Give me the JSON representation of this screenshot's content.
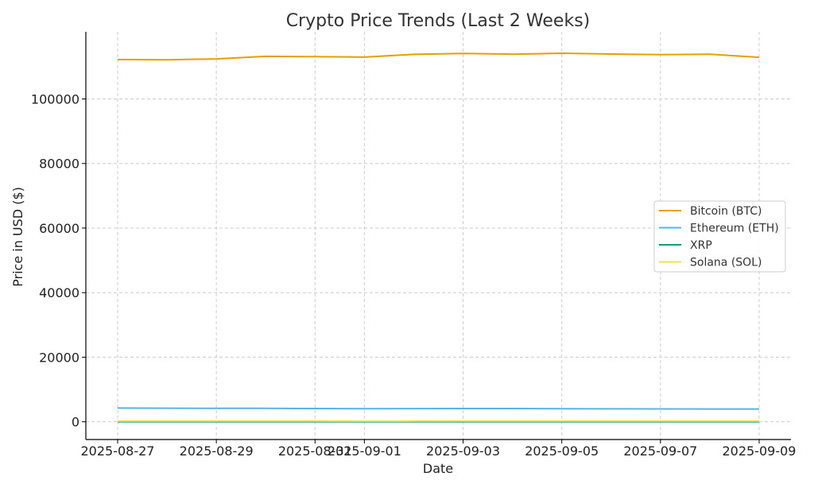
{
  "chart_data": {
    "type": "line",
    "title": "Crypto Price Trends (Last 2 Weeks)",
    "xlabel": "Date",
    "ylabel": "Price in USD ($)",
    "x": [
      "2025-08-27",
      "2025-08-28",
      "2025-08-29",
      "2025-08-30",
      "2025-08-31",
      "2025-09-01",
      "2025-09-02",
      "2025-09-03",
      "2025-09-04",
      "2025-09-05",
      "2025-09-06",
      "2025-09-07",
      "2025-09-08",
      "2025-09-09"
    ],
    "x_ticks": [
      "2025-08-27",
      "2025-08-29",
      "2025-08-31",
      "2025-09-01",
      "2025-09-03",
      "2025-09-05",
      "2025-09-07",
      "2025-09-09"
    ],
    "x_tick_labels": [
      "2025-08-27",
      "2025-08-29",
      "2025-08-31",
      "2025-09-01",
      "2025-09-03",
      "2025-09-05",
      "2025-09-07",
      "2025-09-09"
    ],
    "y_ticks": [
      0,
      20000,
      40000,
      60000,
      80000,
      100000
    ],
    "y_tick_labels": [
      "0",
      "20000",
      "40000",
      "60000",
      "80000",
      "100000"
    ],
    "ylim": [
      -5500,
      120800
    ],
    "grid": true,
    "legend_position": "center-right",
    "series": [
      {
        "name": "Bitcoin (BTC)",
        "color": "#E69F00",
        "values": [
          112200,
          112100,
          112400,
          113200,
          113100,
          112950,
          113800,
          114100,
          113850,
          114150,
          113900,
          113700,
          113850,
          112900
        ]
      },
      {
        "name": "Ethereum (ETH)",
        "color": "#56B4E9",
        "values": [
          4250,
          4200,
          4150,
          4150,
          4100,
          4050,
          4080,
          4100,
          4090,
          4050,
          4000,
          3980,
          3950,
          3950
        ]
      },
      {
        "name": "XRP",
        "color": "#009E73",
        "values": [
          2.9,
          2.95,
          2.85,
          2.8,
          2.8,
          2.78,
          2.82,
          2.85,
          2.86,
          2.83,
          2.84,
          2.86,
          2.9,
          2.95
        ]
      },
      {
        "name": "Solana (SOL)",
        "color": "#F0E442",
        "values": [
          205,
          210,
          212,
          207,
          200,
          198,
          205,
          210,
          206,
          204,
          208,
          212,
          215,
          214
        ]
      }
    ]
  }
}
